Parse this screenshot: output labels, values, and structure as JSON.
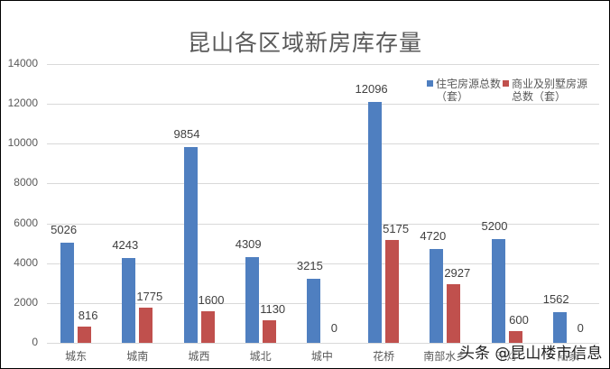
{
  "chart_data": {
    "type": "bar",
    "title": "昆山各区域新房库存量",
    "xlabel": "",
    "ylabel": "",
    "ylim": [
      0,
      14000
    ],
    "yticks": [
      0,
      2000,
      4000,
      6000,
      8000,
      10000,
      12000,
      14000
    ],
    "grid": true,
    "legend_position": "top-right",
    "categories": [
      "城东",
      "城南",
      "城西",
      "城北",
      "城中",
      "花桥",
      "南部水乡",
      "千灯",
      "陆家"
    ],
    "series": [
      {
        "name": "住宅房源总数（套）",
        "color": "#4f7fc0",
        "values": [
          5026,
          4243,
          9854,
          4309,
          3215,
          12096,
          4720,
          5200,
          1562
        ]
      },
      {
        "name": "商业及别墅房源总数（套）",
        "color": "#c0504d",
        "values": [
          816,
          1775,
          1600,
          1130,
          0,
          5175,
          2927,
          600,
          0
        ]
      }
    ]
  },
  "title": "昆山各区域新房库存量",
  "legend": {
    "series1_line1": "住宅房源总数",
    "series1_line2": "（套）",
    "series2_line1": "商业及别墅房源",
    "series2_line2": "总数（套）"
  },
  "yticks": [
    "0",
    "2000",
    "4000",
    "6000",
    "8000",
    "10000",
    "12000",
    "14000"
  ],
  "watermark": "头条 @昆山楼市信息"
}
